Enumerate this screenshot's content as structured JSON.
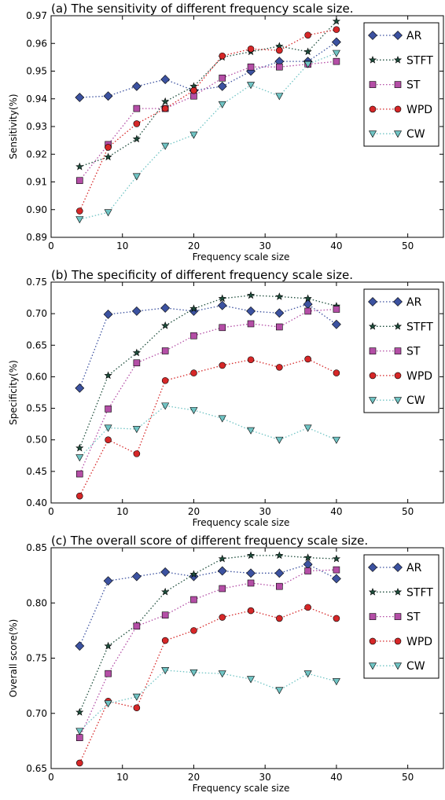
{
  "chart_data": [
    {
      "type": "line",
      "title": "(a) The sensitivity of different frequency scale size.",
      "xlabel": "Frequency scale size",
      "ylabel": "Sensitivity(%)",
      "xlim": [
        0,
        55
      ],
      "ylim": [
        0.89,
        0.97
      ],
      "xticks": [
        "0",
        "10",
        "20",
        "30",
        "40",
        "50"
      ],
      "yticks": [
        "0.89",
        "0.90",
        "0.91",
        "0.92",
        "0.93",
        "0.94",
        "0.95",
        "0.96",
        "0.97"
      ],
      "legend": "top-right",
      "x": [
        4,
        8,
        12,
        16,
        20,
        24,
        28,
        32,
        36,
        40
      ],
      "series": [
        {
          "name": "AR",
          "color": "#3c52a0",
          "marker": "diamond",
          "values": [
            0.9405,
            0.941,
            0.9445,
            0.947,
            0.943,
            0.9445,
            0.95,
            0.9535,
            0.9535,
            0.9605
          ]
        },
        {
          "name": "STFT",
          "color": "#1e4d3c",
          "marker": "star",
          "values": [
            0.9155,
            0.919,
            0.9255,
            0.939,
            0.9445,
            0.955,
            0.957,
            0.959,
            0.957,
            0.968
          ]
        },
        {
          "name": "ST",
          "color": "#b44ea6",
          "marker": "square",
          "values": [
            0.9105,
            0.9235,
            0.9365,
            0.9365,
            0.941,
            0.9475,
            0.9515,
            0.9515,
            0.9525,
            0.9535
          ]
        },
        {
          "name": "WPD",
          "color": "#d62728",
          "marker": "circle",
          "values": [
            0.8995,
            0.9225,
            0.931,
            0.9365,
            0.943,
            0.9555,
            0.958,
            0.9575,
            0.963,
            0.965
          ]
        },
        {
          "name": "CW",
          "color": "#70c4c4",
          "marker": "triangle-down",
          "values": [
            0.8965,
            0.899,
            0.912,
            0.923,
            0.927,
            0.938,
            0.945,
            0.941,
            0.9525,
            0.9565
          ]
        }
      ]
    },
    {
      "type": "line",
      "title": "(b) The specificity of different frequency scale size.",
      "xlabel": "Frequency scale size",
      "ylabel": "Specificity(%)",
      "xlim": [
        0,
        55
      ],
      "ylim": [
        0.4,
        0.75
      ],
      "xticks": [
        "0",
        "10",
        "20",
        "30",
        "40",
        "50"
      ],
      "yticks": [
        "0.40",
        "0.45",
        "0.50",
        "0.55",
        "0.60",
        "0.65",
        "0.70",
        "0.75"
      ],
      "legend": "top-right",
      "x": [
        4,
        8,
        12,
        16,
        20,
        24,
        28,
        32,
        36,
        40
      ],
      "series": [
        {
          "name": "AR",
          "color": "#3c52a0",
          "marker": "diamond",
          "values": [
            0.582,
            0.699,
            0.704,
            0.709,
            0.704,
            0.713,
            0.704,
            0.701,
            0.715,
            0.683
          ]
        },
        {
          "name": "STFT",
          "color": "#1e4d3c",
          "marker": "star",
          "values": [
            0.487,
            0.602,
            0.638,
            0.681,
            0.708,
            0.724,
            0.729,
            0.727,
            0.724,
            0.712
          ]
        },
        {
          "name": "ST",
          "color": "#b44ea6",
          "marker": "square",
          "values": [
            0.446,
            0.549,
            0.622,
            0.641,
            0.665,
            0.678,
            0.684,
            0.679,
            0.704,
            0.707
          ]
        },
        {
          "name": "WPD",
          "color": "#d62728",
          "marker": "circle",
          "values": [
            0.411,
            0.5,
            0.478,
            0.594,
            0.606,
            0.618,
            0.627,
            0.615,
            0.628,
            0.606
          ]
        },
        {
          "name": "CW",
          "color": "#70c4c4",
          "marker": "triangle-down",
          "values": [
            0.472,
            0.519,
            0.517,
            0.554,
            0.547,
            0.534,
            0.515,
            0.5,
            0.519,
            0.5
          ]
        }
      ]
    },
    {
      "type": "line",
      "title": "(c) The overall score of different frequency scale size.",
      "xlabel": "Frequency scale size",
      "ylabel": "Overall score(%)",
      "xlim": [
        0,
        55
      ],
      "ylim": [
        0.65,
        0.85
      ],
      "xticks": [
        "0",
        "10",
        "20",
        "30",
        "40",
        "50"
      ],
      "yticks": [
        "0.65",
        "0.70",
        "0.75",
        "0.80",
        "0.85"
      ],
      "legend": "top-right",
      "x": [
        4,
        8,
        12,
        16,
        20,
        24,
        28,
        32,
        36,
        40
      ],
      "series": [
        {
          "name": "AR",
          "color": "#3c52a0",
          "marker": "diamond",
          "values": [
            0.761,
            0.82,
            0.824,
            0.828,
            0.824,
            0.829,
            0.827,
            0.827,
            0.835,
            0.822
          ]
        },
        {
          "name": "STFT",
          "color": "#1e4d3c",
          "marker": "star",
          "values": [
            0.701,
            0.761,
            0.78,
            0.81,
            0.826,
            0.84,
            0.843,
            0.843,
            0.841,
            0.84
          ]
        },
        {
          "name": "ST",
          "color": "#b44ea6",
          "marker": "square",
          "values": [
            0.678,
            0.736,
            0.779,
            0.789,
            0.803,
            0.813,
            0.818,
            0.815,
            0.829,
            0.83
          ]
        },
        {
          "name": "WPD",
          "color": "#d62728",
          "marker": "circle",
          "values": [
            0.655,
            0.711,
            0.705,
            0.766,
            0.775,
            0.787,
            0.793,
            0.786,
            0.796,
            0.786
          ]
        },
        {
          "name": "CW",
          "color": "#70c4c4",
          "marker": "triangle-down",
          "values": [
            0.684,
            0.709,
            0.715,
            0.739,
            0.737,
            0.736,
            0.731,
            0.721,
            0.736,
            0.729
          ]
        }
      ]
    }
  ]
}
